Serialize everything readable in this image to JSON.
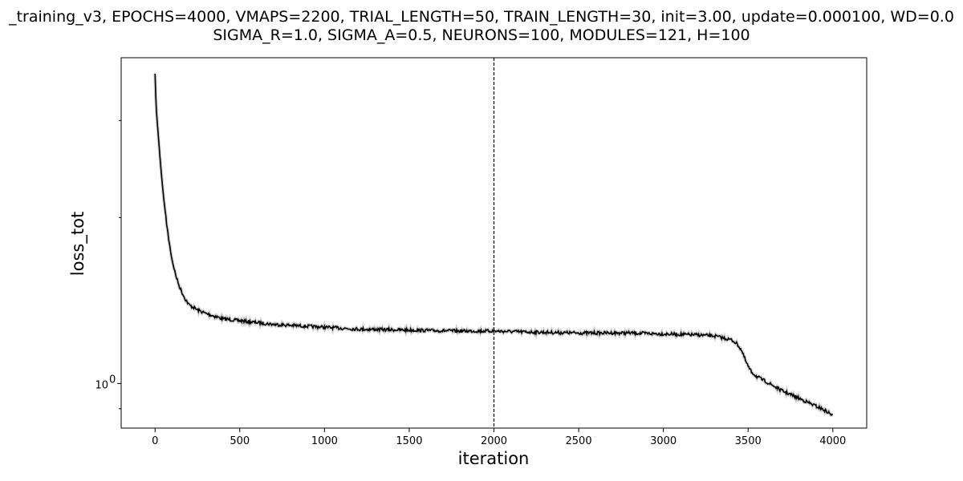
{
  "chart_data": {
    "type": "line",
    "title": "_training_v3, EPOCHS=4000, VMAPS=2200, TRIAL_LENGTH=50, TRAIN_LENGTH=30, init=3.00, update=0.000100, WD=0.0",
    "subtitle": "SIGMA_R=1.0, SIGMA_A=0.5, NEURONS=100, MODULES=121, H=100",
    "xlabel": "iteration",
    "ylabel": "loss_tot",
    "xlim": [
      -200,
      4200
    ],
    "ylim": [
      0.83,
      3.9
    ],
    "yscale": "log",
    "grid": false,
    "x_ticks": [
      0,
      500,
      1000,
      1500,
      2000,
      2500,
      3000,
      3500,
      4000
    ],
    "x_tick_labels": [
      "0",
      "500",
      "1000",
      "1500",
      "2000",
      "2500",
      "3000",
      "3500",
      "4000"
    ],
    "y_major_ticks": [
      1
    ],
    "y_major_tick_labels": [
      "10",
      "0"
    ],
    "y_minor_ticks": [
      0.9,
      2,
      3
    ],
    "vline": {
      "x": 2000,
      "style": "dashed",
      "color": "#000000"
    },
    "series": [
      {
        "color": "#000000",
        "x": [
          0,
          5,
          10,
          20,
          30,
          40,
          50,
          60,
          70,
          80,
          90,
          100,
          120,
          140,
          160,
          180,
          200,
          250,
          300,
          400,
          500,
          700,
          900,
          1200,
          1500,
          1800,
          2000,
          2200,
          2500,
          2800,
          3000,
          3200,
          3300,
          3350,
          3400,
          3420,
          3440,
          3460,
          3470,
          3480,
          3490,
          3500,
          3510,
          3520,
          3550,
          3600,
          3650,
          3700,
          3750,
          3800,
          3850,
          3900,
          3950,
          4000
        ],
        "y": [
          3.65,
          3.25,
          3.05,
          2.8,
          2.55,
          2.35,
          2.18,
          2.05,
          1.93,
          1.83,
          1.75,
          1.68,
          1.58,
          1.51,
          1.46,
          1.42,
          1.39,
          1.36,
          1.34,
          1.31,
          1.3,
          1.28,
          1.27,
          1.255,
          1.25,
          1.245,
          1.245,
          1.24,
          1.235,
          1.235,
          1.23,
          1.225,
          1.22,
          1.21,
          1.2,
          1.19,
          1.175,
          1.15,
          1.13,
          1.11,
          1.09,
          1.075,
          1.06,
          1.05,
          1.03,
          1.01,
          0.99,
          0.97,
          0.955,
          0.94,
          0.925,
          0.91,
          0.895,
          0.875
        ]
      }
    ]
  }
}
